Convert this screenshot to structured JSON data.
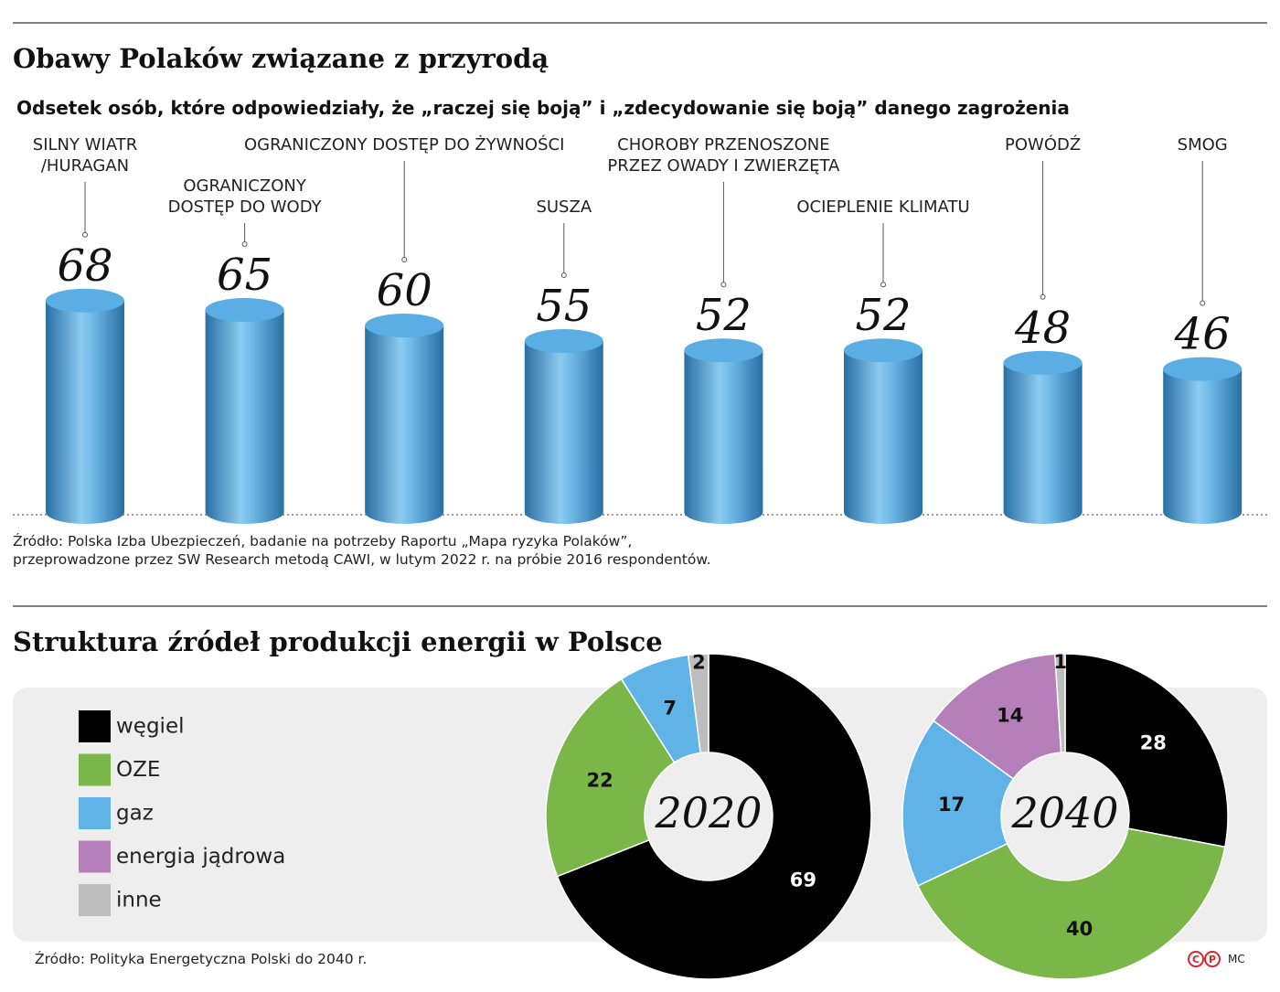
{
  "chart_data": [
    {
      "type": "bar",
      "title": "Obawy Polaków związane z przyrodą",
      "subtitle": "Odsetek osób, które odpowiedziały, że „raczej się boją” i „zdecydowanie się boją” danego zagrożenia",
      "categories": [
        "SILNY WIATR\n/HURAGAN",
        "OGRANICZONY\nDOSTĘP DO WODY",
        "OGRANICZONY DOSTĘP DO ŻYWNOŚCI",
        "SUSZA",
        "CHOROBY PRZENOSZONE\nPRZEZ OWADY I ZWIERZĘTA",
        "OCIEPLENIE KLIMATU",
        "POWÓDŹ",
        "SMOG"
      ],
      "values": [
        68,
        65,
        60,
        55,
        52,
        52,
        48,
        46
      ],
      "color": "#5aaee3",
      "source": "Źródło: Polska Izba Ubezpieczeń, badanie na potrzeby Raportu  „Mapa ryzyka Polaków”,\nprzeprowadzone przez SW Research metodą CAWI, w lutym  2022 r. na próbie 2016 respondentów."
    },
    {
      "type": "donut",
      "title": "Struktura źródeł produkcji energii w Polsce",
      "categories": [
        "węgiel",
        "OZE",
        "gaz",
        "energia jądrowa",
        "inne"
      ],
      "colors": [
        "#000000",
        "#7ab648",
        "#5fb3e6",
        "#b57fba",
        "#bdbdbd"
      ],
      "series": [
        {
          "name": "2020",
          "values": [
            69,
            22,
            7,
            null,
            2
          ]
        },
        {
          "name": "2040",
          "values": [
            28,
            40,
            17,
            14,
            1
          ]
        }
      ],
      "source": "Źródło: Polityka Energetyczna Polski do 2040 r.",
      "logo": [
        "C",
        "P"
      ],
      "credit": "MC"
    }
  ]
}
